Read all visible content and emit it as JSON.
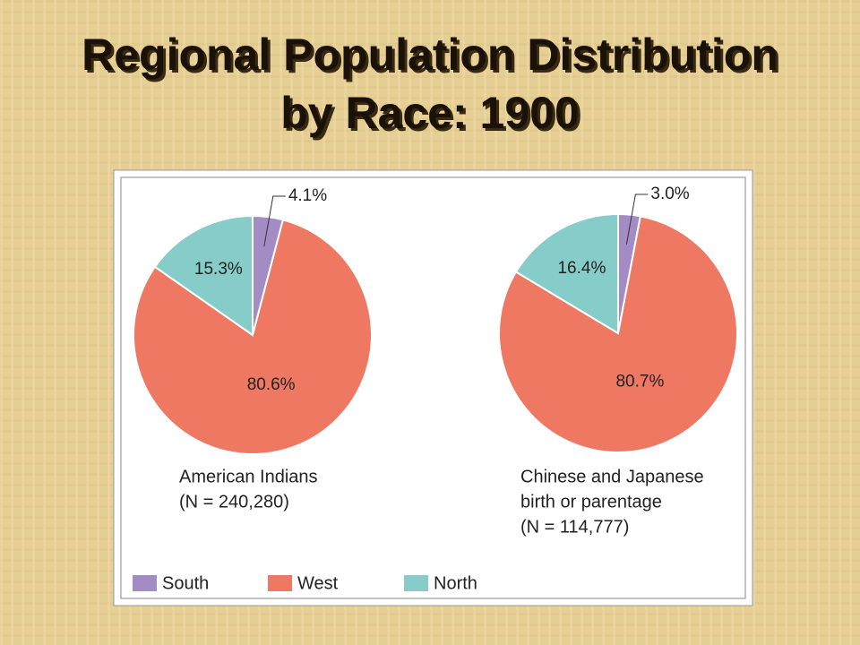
{
  "title": [
    "Regional Population Distribution",
    "by Race:  1900"
  ],
  "legend": {
    "categories": [
      "South",
      "West",
      "North"
    ],
    "colors": [
      "#a38bc4",
      "#ef7862",
      "#86ccc8"
    ]
  },
  "chart_data": [
    {
      "type": "pie",
      "values": [
        4.1,
        80.6,
        15.3
      ],
      "value_labels": [
        "4.1%",
        "80.6%",
        "15.3%"
      ],
      "caption": [
        "American Indians",
        "(N = 240,280)"
      ]
    },
    {
      "type": "pie",
      "values": [
        3.0,
        80.7,
        16.4
      ],
      "value_labels": [
        "3.0%",
        "80.7%",
        "16.4%"
      ],
      "caption": [
        "Chinese and Japanese",
        "birth or parentage",
        "(N = 114,777)"
      ]
    }
  ]
}
